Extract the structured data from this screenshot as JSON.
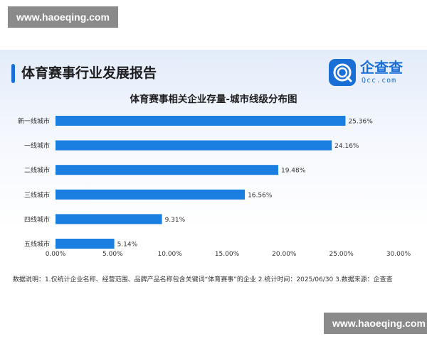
{
  "watermark": {
    "top": "www.haoeqing.com",
    "bottom": "www.haoeqing.com"
  },
  "header": {
    "title": "体育赛事行业发展报告"
  },
  "logo": {
    "name": "企查查",
    "subtitle": "Qcc.com",
    "icon": "qcc-logo-icon"
  },
  "colors": {
    "accent": "#1a6fd6",
    "bar": "#1a7fe0"
  },
  "chart_data": {
    "type": "bar",
    "orientation": "horizontal",
    "title": "体育赛事相关企业存量-城市线级分布图",
    "categories": [
      "新一线城市",
      "一线城市",
      "二线城市",
      "三线城市",
      "四线城市",
      "五线城市"
    ],
    "values": [
      25.36,
      24.16,
      19.48,
      16.56,
      9.31,
      5.14
    ],
    "data_labels": [
      "25.36%",
      "24.16%",
      "19.48%",
      "16.56%",
      "9.31%",
      "5.14%"
    ],
    "x_ticks": [
      "0.00%",
      "5.00%",
      "10.00%",
      "15.00%",
      "20.00%",
      "25.00%",
      "30.00%"
    ],
    "xlim": [
      0,
      30
    ],
    "grid": false,
    "legend": "none"
  },
  "note": "数据说明：1.仅统计企业名称、经营范围、品牌产品名称包含关键词“体育赛事”的企业  2.统计时间：2025/06/30  3.数据来源：企查查"
}
